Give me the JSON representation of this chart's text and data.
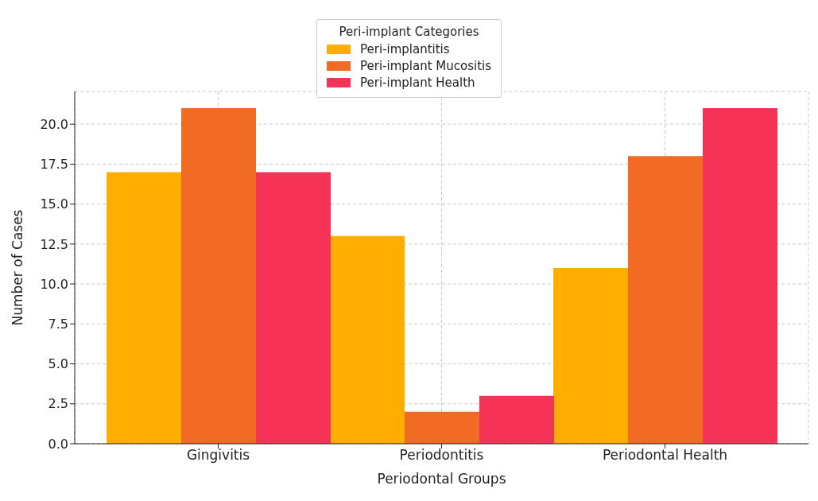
{
  "chart_data": {
    "type": "bar",
    "xlabel": "Periodontal Groups",
    "ylabel": "Number of Cases",
    "legend_title": "Peri-implant Categories",
    "categories": [
      "Gingivitis",
      "Periodontitis",
      "Periodontal Health"
    ],
    "series": [
      {
        "name": "Peri-implantitis",
        "color": "#ffae00",
        "values": [
          17,
          13,
          11
        ]
      },
      {
        "name": "Peri-implant Mucositis",
        "color": "#f26b24",
        "values": [
          21,
          2,
          18
        ]
      },
      {
        "name": "Peri-implant Health",
        "color": "#f53357",
        "values": [
          17,
          3,
          21
        ]
      }
    ],
    "ylim": [
      0,
      22.05
    ],
    "yticks": [
      {
        "value": 0,
        "label": "0.0"
      },
      {
        "value": 2.5,
        "label": "2.5"
      },
      {
        "value": 5,
        "label": "5.0"
      },
      {
        "value": 7.5,
        "label": "7.5"
      },
      {
        "value": 10,
        "label": "10.0"
      },
      {
        "value": 12.5,
        "label": "12.5"
      },
      {
        "value": 15,
        "label": "15.0"
      },
      {
        "value": 17.5,
        "label": "17.5"
      },
      {
        "value": 20,
        "label": "20.0"
      }
    ],
    "grid": true,
    "legend": "top"
  }
}
